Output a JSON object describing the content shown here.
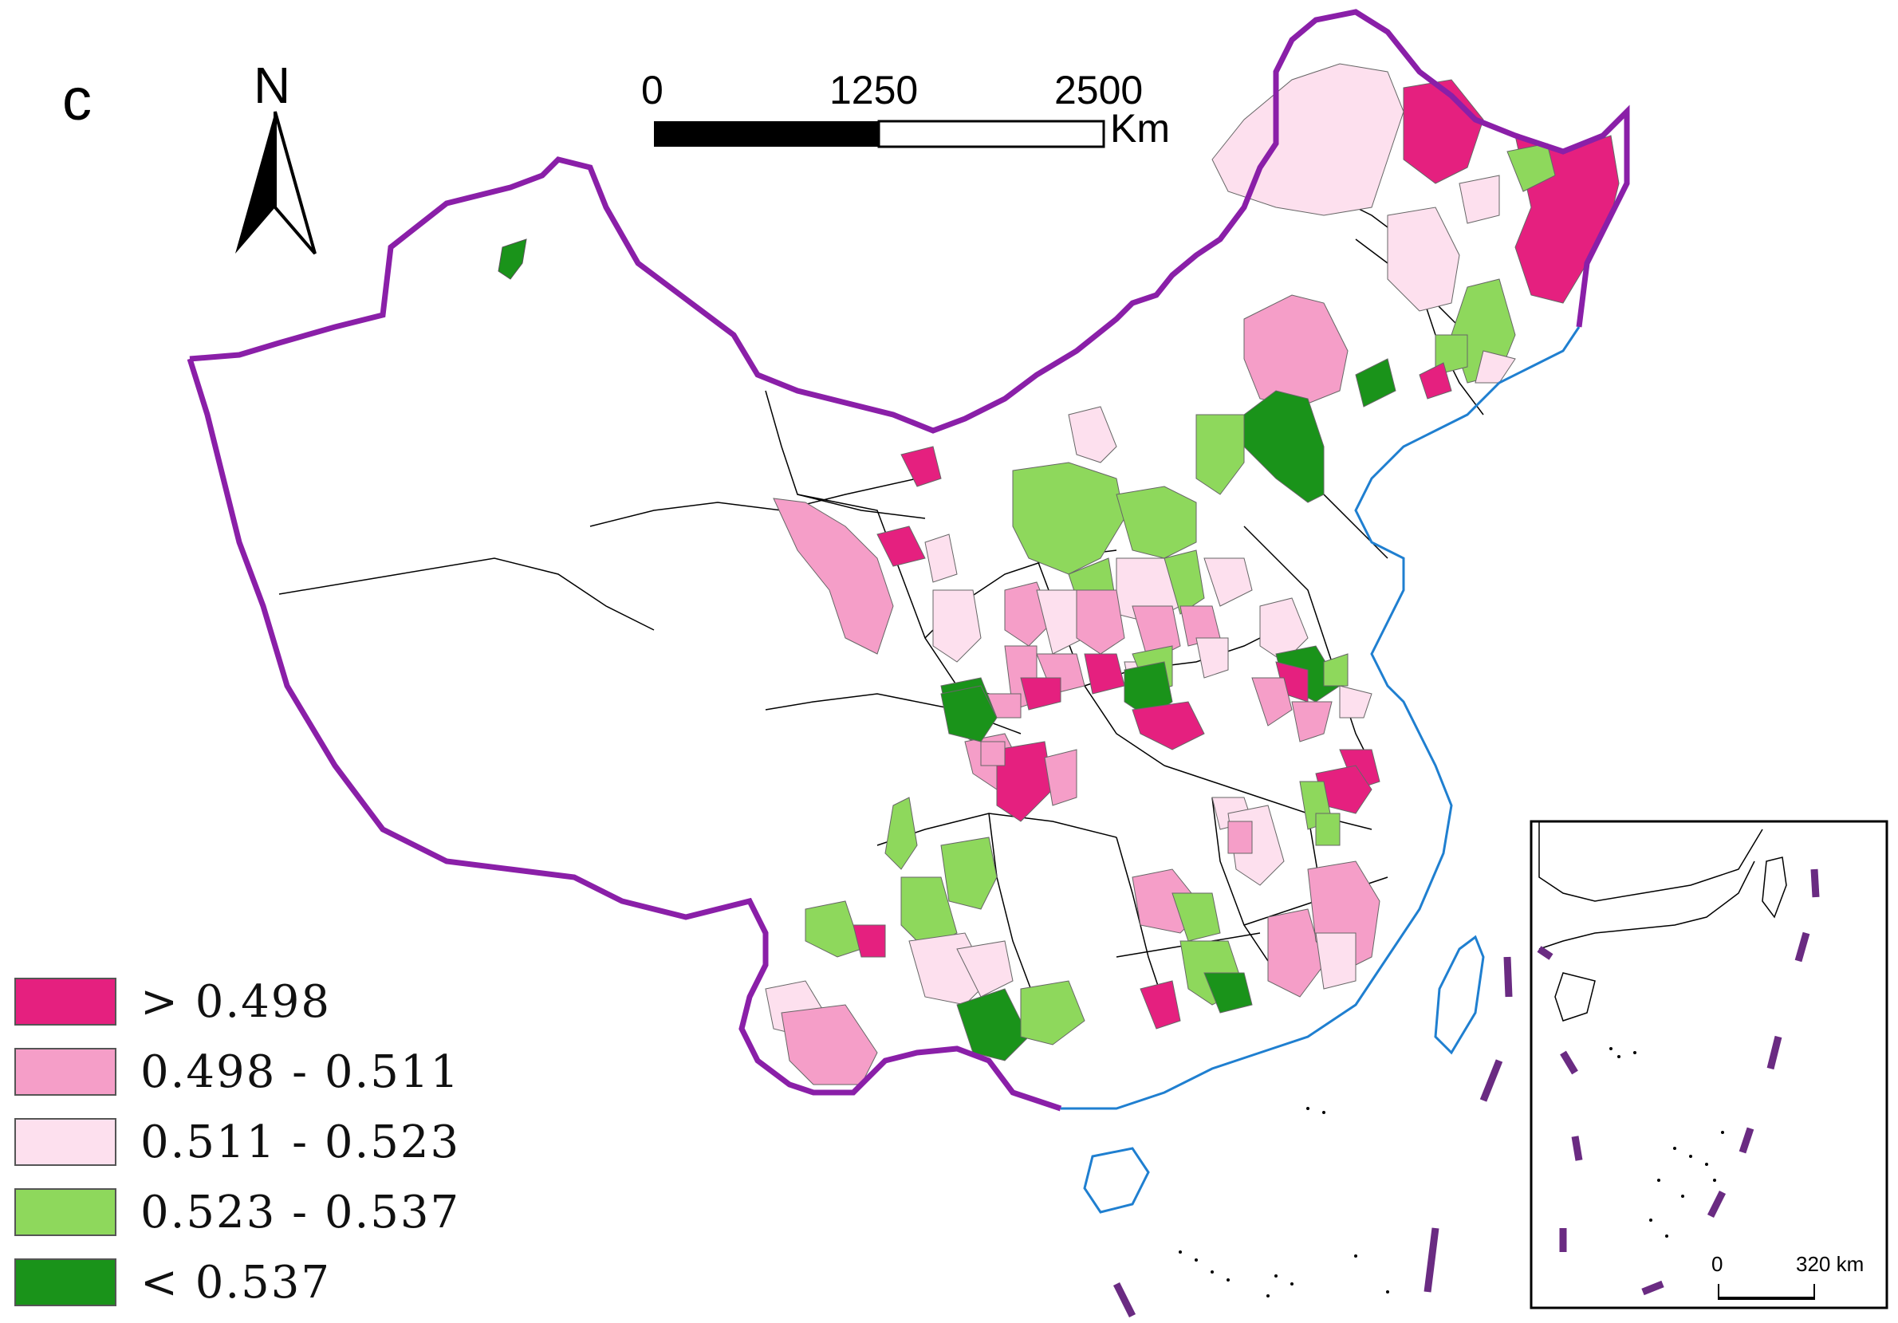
{
  "panel": {
    "label": "c"
  },
  "north_arrow": {
    "label": "N"
  },
  "scale_bar": {
    "ticks": [
      "0",
      "1250",
      "2500"
    ],
    "unit": "Km"
  },
  "inset": {
    "scale_ticks": [
      "0",
      "320 km"
    ]
  },
  "legend": {
    "items": [
      {
        "label": "> 0.498",
        "color": "#e5207f"
      },
      {
        "label": "0.498 - 0.511",
        "color": "#f59ec8"
      },
      {
        "label": "0.511 - 0.523",
        "color": "#fde0ee"
      },
      {
        "label": "0.523 - 0.537",
        "color": "#8ed85c"
      },
      {
        "label": "< 0.537",
        "color": "#1a931a"
      }
    ]
  },
  "colors": {
    "national_border": "#8a1fa8",
    "coastline": "#1f7fd0",
    "province_border": "#000000",
    "nine_dash": "#6a2b82"
  }
}
